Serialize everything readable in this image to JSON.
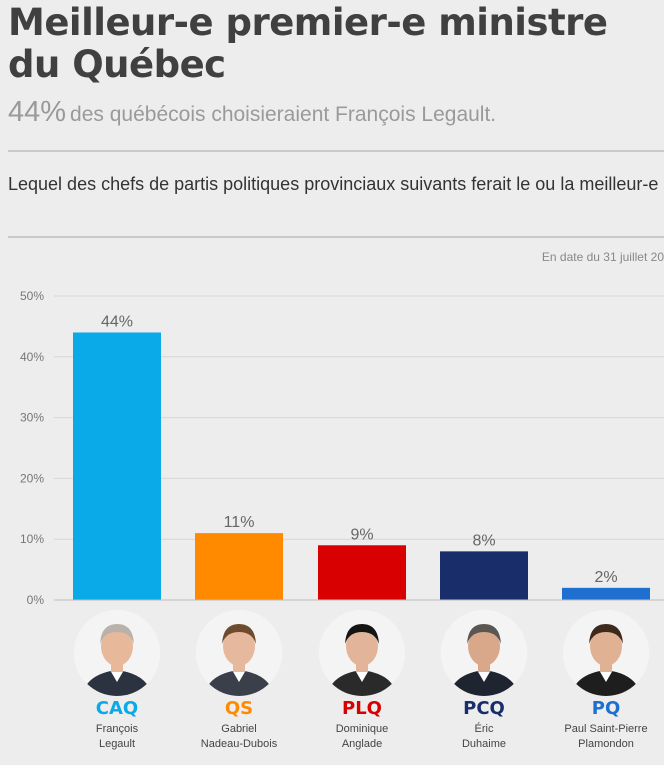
{
  "header": {
    "title": "Meilleur-e premier-e ministre du Québec",
    "subtitle_value": "44%",
    "subtitle_text": "des québécois choisieraient François Legault."
  },
  "question": "Lequel des chefs de partis politiques provinciaux suivants ferait le ou la meilleur-e premier-e ministre du Québec?",
  "date_note": "En date du 31 juillet 20",
  "chart_data": {
    "type": "bar",
    "categories": [
      "CAQ",
      "QS",
      "PLQ",
      "PCQ",
      "PQ"
    ],
    "values": [
      44,
      11,
      9,
      8,
      2
    ],
    "value_labels": [
      "44%",
      "11%",
      "9%",
      "8%",
      "2%"
    ],
    "leaders": [
      "François\nLegault",
      "Gabriel\nNadeau-Dubois",
      "Dominique\nAnglade",
      "Éric\nDuhaime",
      "Paul Saint-Pierre\nPlamondon"
    ],
    "colors": [
      "#0aa9e8",
      "#ff8a00",
      "#d80000",
      "#1a2d6b",
      "#1f6fd0"
    ],
    "yticks": [
      "0%",
      "10%",
      "20%",
      "30%",
      "40%",
      "50%"
    ],
    "ylim": [
      0,
      50
    ],
    "grid": true
  },
  "portraits": [
    {
      "icon": "portrait-icon",
      "hair": "#b9b2aa",
      "skin": "#e8b89a",
      "suit": "#2b3340"
    },
    {
      "icon": "portrait-icon",
      "hair": "#6e4a2f",
      "skin": "#e6b99e",
      "suit": "#3a3f4a"
    },
    {
      "icon": "portrait-icon",
      "hair": "#141414",
      "skin": "#e2b59a",
      "suit": "#2a2a2a"
    },
    {
      "icon": "portrait-icon",
      "hair": "#5a5752",
      "skin": "#d9a78a",
      "suit": "#1e2430"
    },
    {
      "icon": "portrait-icon",
      "hair": "#3e2a1d",
      "skin": "#e1b193",
      "suit": "#1e1e1e"
    }
  ]
}
